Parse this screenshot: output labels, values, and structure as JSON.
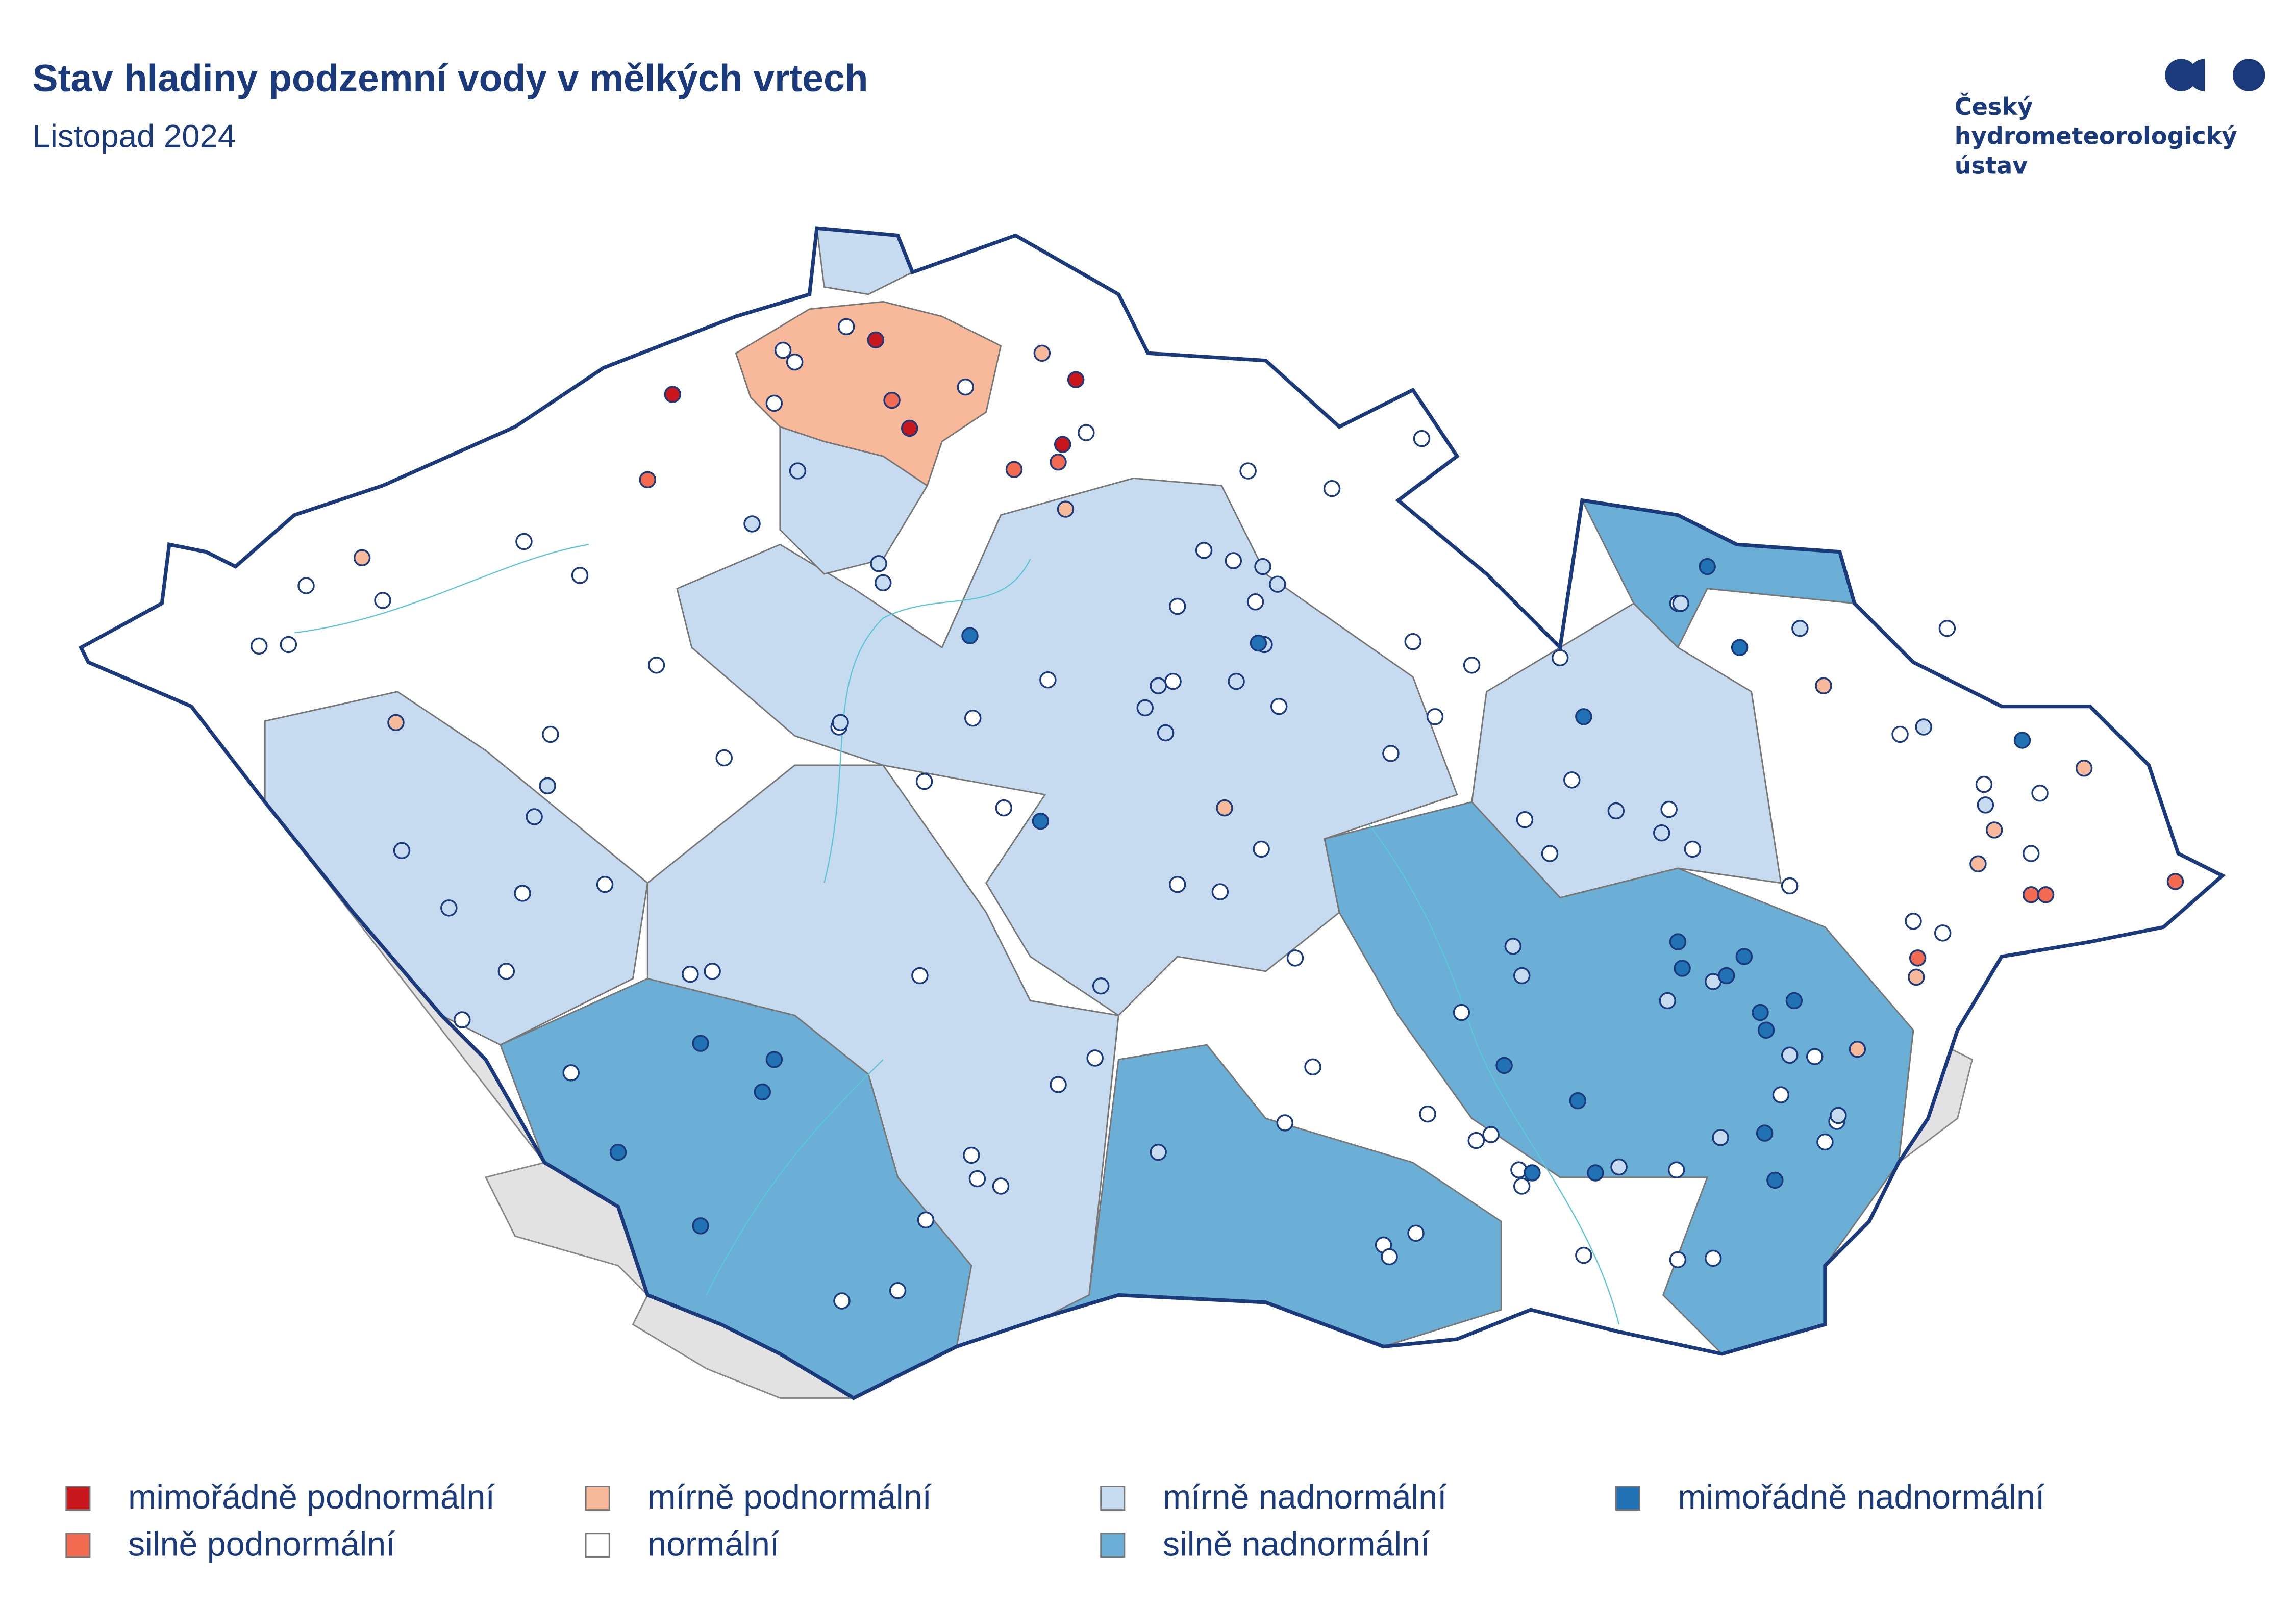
{
  "header": {
    "title": "Stav hladiny podzemní vody v mělkých vrtech",
    "subtitle": "Listopad 2024"
  },
  "logo": {
    "lines": [
      "Český",
      "hydrometeorologický",
      "ústav"
    ]
  },
  "legend": [
    {
      "label": "mimořádně podnormální",
      "color": "#c8161d"
    },
    {
      "label": "silně podnormální",
      "color": "#f26a4f"
    },
    {
      "label": "mírně podnormální",
      "color": "#f8b89a"
    },
    {
      "label": "normální",
      "color": "#ffffff"
    },
    {
      "label": "mírně nadnormální",
      "color": "#c6dbef"
    },
    {
      "label": "silně nadnormální",
      "color": "#6baed6"
    },
    {
      "label": "mimořádně nadnormální",
      "color": "#2171b5"
    }
  ]
}
